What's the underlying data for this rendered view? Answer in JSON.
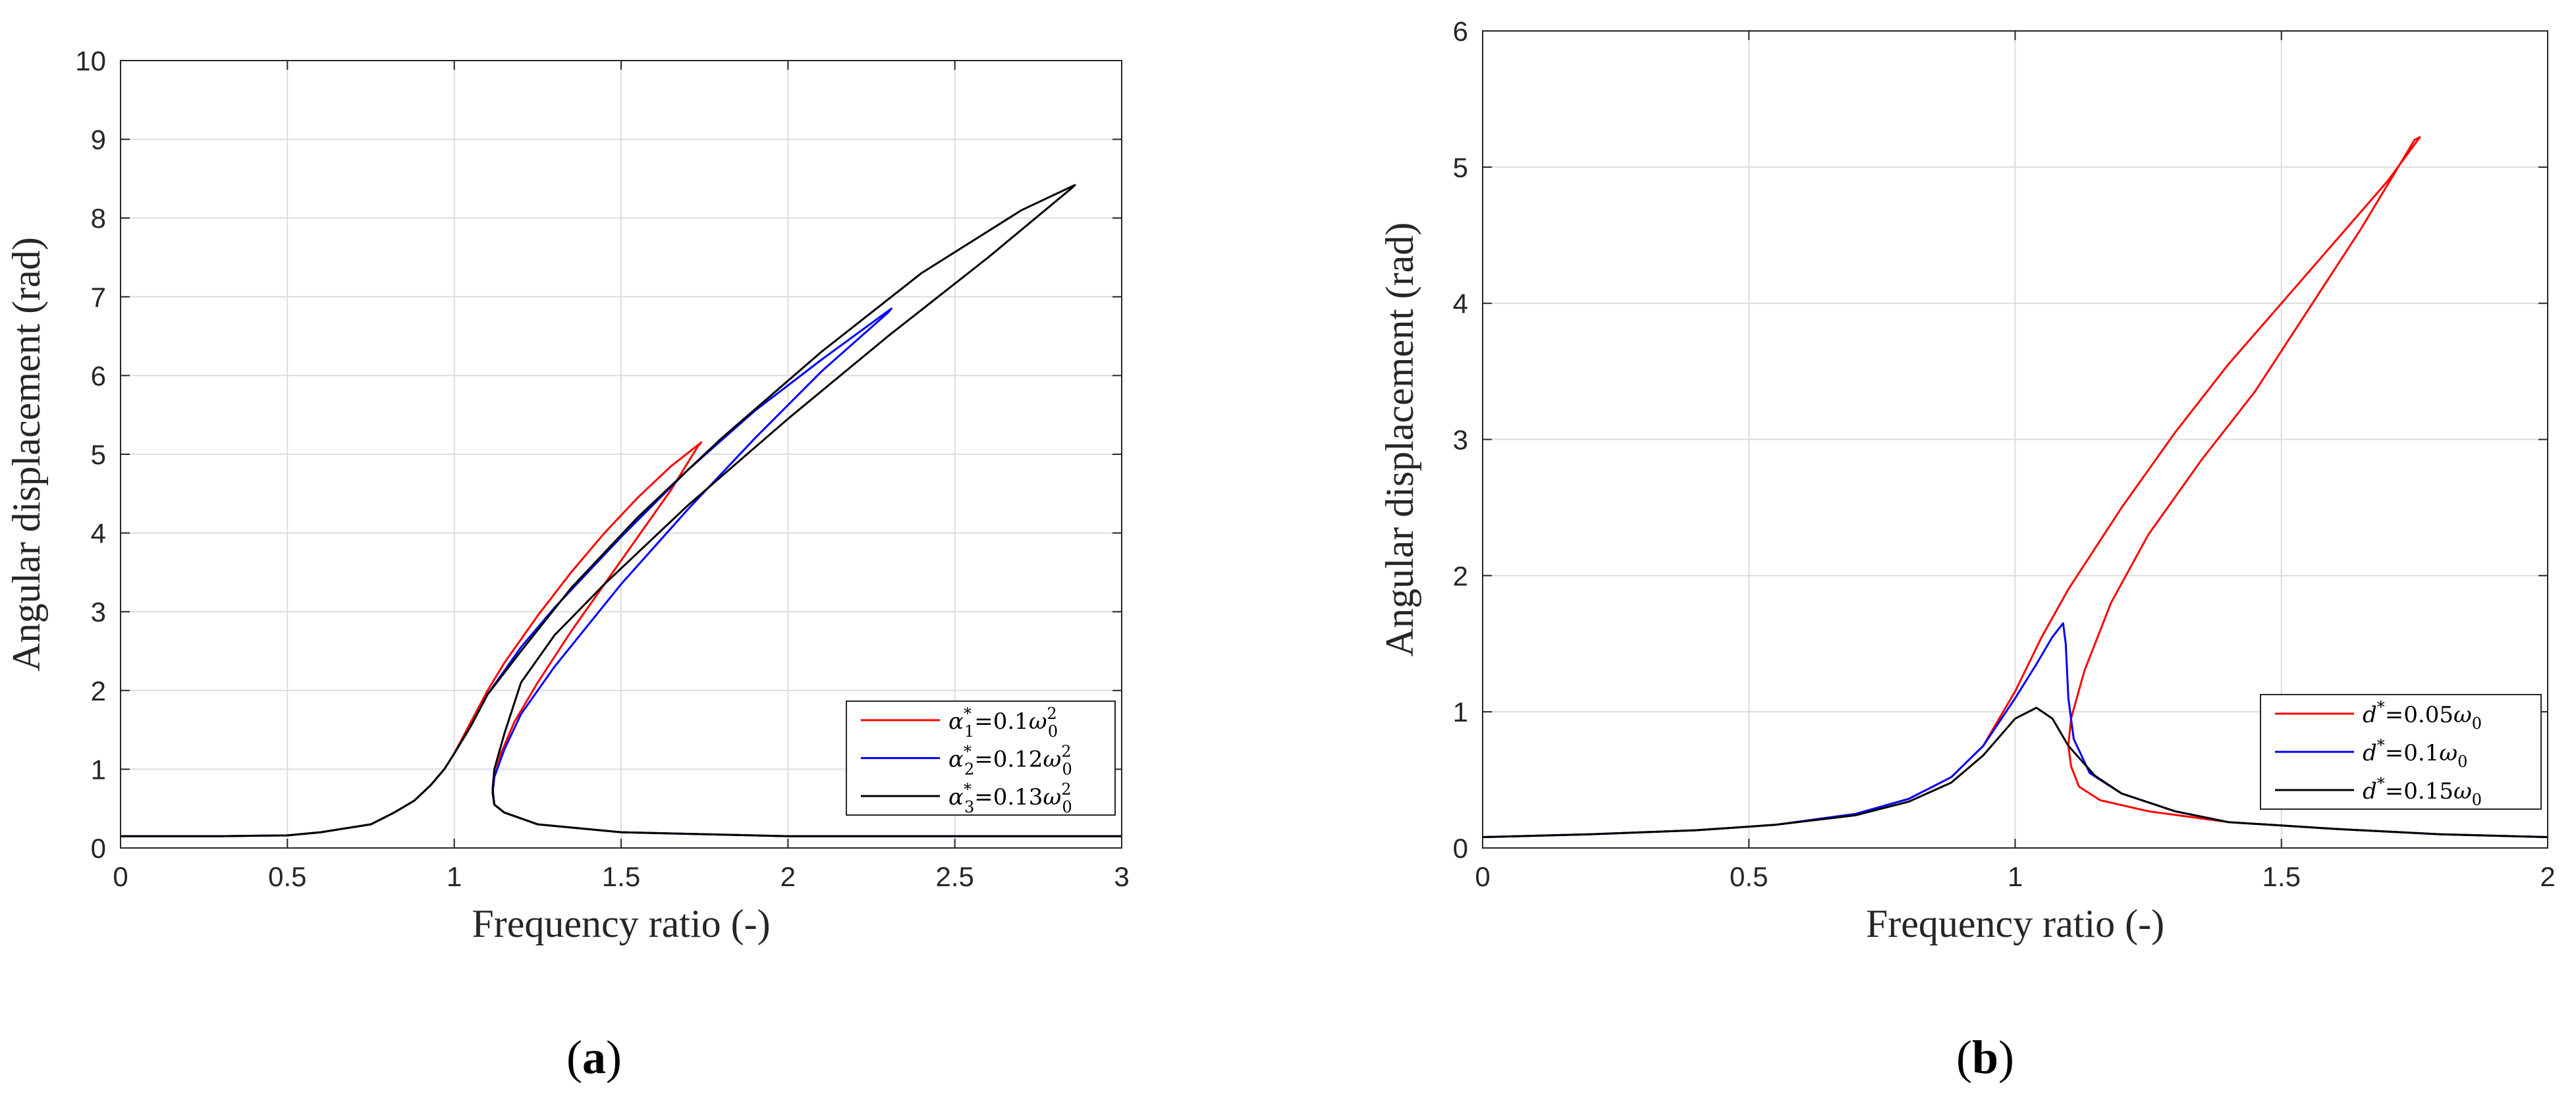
{
  "panel_labels": {
    "a": {
      "open": "(",
      "letter": "a",
      "close": ")"
    },
    "b": {
      "open": "(",
      "letter": "b",
      "close": ")"
    }
  },
  "chart_data": [
    {
      "id": "a",
      "type": "line",
      "xlabel": "Frequency ratio (-)",
      "ylabel": "Angular displacement (rad)",
      "xlim": [
        0,
        3
      ],
      "ylim": [
        0,
        10
      ],
      "xticks": [
        0,
        0.5,
        1,
        1.5,
        2,
        2.5,
        3
      ],
      "xtick_labels": [
        "0",
        "0.5",
        "1",
        "1.5",
        "2",
        "2.5",
        "3"
      ],
      "yticks": [
        0,
        1,
        2,
        3,
        4,
        5,
        6,
        7,
        8,
        9,
        10
      ],
      "ytick_labels": [
        "0",
        "1",
        "2",
        "3",
        "4",
        "5",
        "6",
        "7",
        "8",
        "9",
        "10"
      ],
      "grid": true,
      "legend_position": "bottom-right",
      "series": [
        {
          "name": "α₁*=0.1ω₀²",
          "legend": {
            "sym": "α",
            "sub": "1",
            "sup": "*",
            "rhs": "=0.1",
            "w": "ω",
            "wsub": "0",
            "wsup": "2"
          },
          "color": "#ff0000",
          "x": [
            0,
            0.3,
            0.5,
            0.6,
            0.75,
            0.82,
            0.88,
            0.93,
            0.97,
            1.0,
            1.05,
            1.1,
            1.15,
            1.25,
            1.35,
            1.45,
            1.55,
            1.65,
            1.74,
            1.73,
            1.65,
            1.55,
            1.45,
            1.35,
            1.25,
            1.18,
            1.14,
            1.12,
            1.115,
            1.12,
            1.15,
            1.25,
            1.5,
            2,
            2.5,
            3
          ],
          "y": [
            0.15,
            0.15,
            0.16,
            0.2,
            0.3,
            0.45,
            0.6,
            0.8,
            1.0,
            1.2,
            1.6,
            2.0,
            2.35,
            2.95,
            3.5,
            4.0,
            4.45,
            4.85,
            5.15,
            5.1,
            4.55,
            3.95,
            3.35,
            2.75,
            2.1,
            1.6,
            1.2,
            0.9,
            0.7,
            0.55,
            0.45,
            0.3,
            0.2,
            0.15,
            0.15,
            0.15
          ]
        },
        {
          "name": "α₂*=0.12ω₀²",
          "legend": {
            "sym": "α",
            "sub": "2",
            "sup": "*",
            "rhs": "=0.12",
            "w": "ω",
            "wsub": "0",
            "wsup": "2"
          },
          "color": "#0000ff",
          "x": [
            0,
            0.3,
            0.5,
            0.6,
            0.75,
            0.82,
            0.88,
            0.93,
            0.97,
            1.0,
            1.05,
            1.1,
            1.2,
            1.3,
            1.5,
            1.7,
            1.9,
            2.1,
            2.31,
            2.3,
            2.1,
            1.9,
            1.7,
            1.5,
            1.3,
            1.2,
            1.15,
            1.12,
            1.115,
            1.12,
            1.15,
            1.25,
            1.5,
            2,
            2.5,
            3
          ],
          "y": [
            0.15,
            0.15,
            0.16,
            0.2,
            0.3,
            0.45,
            0.6,
            0.8,
            1.0,
            1.2,
            1.55,
            1.95,
            2.55,
            3.05,
            3.95,
            4.8,
            5.55,
            6.2,
            6.85,
            6.8,
            6.05,
            5.2,
            4.3,
            3.35,
            2.3,
            1.7,
            1.25,
            0.9,
            0.7,
            0.55,
            0.45,
            0.3,
            0.2,
            0.15,
            0.15,
            0.15
          ]
        },
        {
          "name": "α₃*=0.13ω₀²",
          "legend": {
            "sym": "α",
            "sub": "3",
            "sup": "*",
            "rhs": "=0.13",
            "w": "ω",
            "wsub": "0",
            "wsup": "2"
          },
          "color": "#000000",
          "x": [
            0,
            0.3,
            0.5,
            0.6,
            0.75,
            0.82,
            0.88,
            0.93,
            0.97,
            1.0,
            1.05,
            1.1,
            1.2,
            1.35,
            1.55,
            1.8,
            2.1,
            2.4,
            2.7,
            2.86,
            2.85,
            2.6,
            2.3,
            2.0,
            1.7,
            1.45,
            1.3,
            1.2,
            1.15,
            1.12,
            1.115,
            1.12,
            1.15,
            1.25,
            1.5,
            2,
            2.5,
            3
          ],
          "y": [
            0.15,
            0.15,
            0.16,
            0.2,
            0.3,
            0.45,
            0.6,
            0.8,
            1.0,
            1.2,
            1.55,
            1.95,
            2.5,
            3.3,
            4.2,
            5.2,
            6.3,
            7.3,
            8.1,
            8.42,
            8.38,
            7.5,
            6.5,
            5.45,
            4.35,
            3.35,
            2.7,
            2.1,
            1.45,
            1.0,
            0.75,
            0.55,
            0.45,
            0.3,
            0.2,
            0.15,
            0.15,
            0.15
          ]
        }
      ]
    },
    {
      "id": "b",
      "type": "line",
      "xlabel": "Frequency ratio (-)",
      "ylabel": "Angular displacement (rad)",
      "xlim": [
        0,
        2
      ],
      "ylim": [
        0,
        6
      ],
      "xticks": [
        0,
        0.5,
        1,
        1.5,
        2
      ],
      "xtick_labels": [
        "0",
        "0.5",
        "1",
        "1.5",
        "2"
      ],
      "yticks": [
        0,
        1,
        2,
        3,
        4,
        5,
        6
      ],
      "ytick_labels": [
        "0",
        "1",
        "2",
        "3",
        "4",
        "5",
        "6"
      ],
      "grid": true,
      "legend_position": "bottom-right",
      "series": [
        {
          "name": "d*=0.05ω₀",
          "legend": {
            "sym": "d",
            "sub": "",
            "sup": "*",
            "rhs": "=0.05",
            "w": "ω",
            "wsub": "0",
            "wsup": ""
          },
          "color": "#ff0000",
          "x": [
            0,
            0.2,
            0.4,
            0.55,
            0.7,
            0.8,
            0.88,
            0.94,
            1.0,
            1.05,
            1.1,
            1.2,
            1.3,
            1.4,
            1.5,
            1.6,
            1.7,
            1.76,
            1.75,
            1.65,
            1.55,
            1.45,
            1.35,
            1.25,
            1.18,
            1.13,
            1.105,
            1.1,
            1.105,
            1.12,
            1.16,
            1.25,
            1.4,
            1.6,
            1.8,
            2
          ],
          "y": [
            0.08,
            0.1,
            0.13,
            0.17,
            0.25,
            0.36,
            0.52,
            0.75,
            1.15,
            1.55,
            1.9,
            2.5,
            3.05,
            3.55,
            4.0,
            4.45,
            4.9,
            5.22,
            5.2,
            4.55,
            3.95,
            3.35,
            2.85,
            2.3,
            1.8,
            1.3,
            0.95,
            0.75,
            0.6,
            0.45,
            0.35,
            0.27,
            0.19,
            0.14,
            0.1,
            0.08
          ]
        },
        {
          "name": "d*=0.1ω₀",
          "legend": {
            "sym": "d",
            "sub": "",
            "sup": "*",
            "rhs": "=0.1",
            "w": "ω",
            "wsub": "0",
            "wsup": ""
          },
          "color": "#0000ff",
          "x": [
            0,
            0.2,
            0.4,
            0.55,
            0.7,
            0.8,
            0.88,
            0.94,
            1.0,
            1.04,
            1.07,
            1.09,
            1.095,
            1.1,
            1.11,
            1.14,
            1.2,
            1.3,
            1.4,
            1.6,
            1.8,
            2
          ],
          "y": [
            0.08,
            0.1,
            0.13,
            0.17,
            0.25,
            0.36,
            0.52,
            0.75,
            1.1,
            1.35,
            1.55,
            1.65,
            1.5,
            1.1,
            0.8,
            0.55,
            0.4,
            0.27,
            0.19,
            0.14,
            0.1,
            0.08
          ]
        },
        {
          "name": "d*=0.15ω₀",
          "legend": {
            "sym": "d",
            "sub": "",
            "sup": "*",
            "rhs": "=0.15",
            "w": "ω",
            "wsub": "0",
            "wsup": ""
          },
          "color": "#000000",
          "x": [
            0,
            0.2,
            0.4,
            0.55,
            0.7,
            0.8,
            0.88,
            0.94,
            1.0,
            1.04,
            1.07,
            1.1,
            1.15,
            1.2,
            1.3,
            1.4,
            1.6,
            1.8,
            2
          ],
          "y": [
            0.08,
            0.1,
            0.13,
            0.17,
            0.24,
            0.34,
            0.48,
            0.68,
            0.95,
            1.03,
            0.95,
            0.75,
            0.53,
            0.4,
            0.27,
            0.19,
            0.14,
            0.1,
            0.08
          ]
        }
      ]
    }
  ]
}
